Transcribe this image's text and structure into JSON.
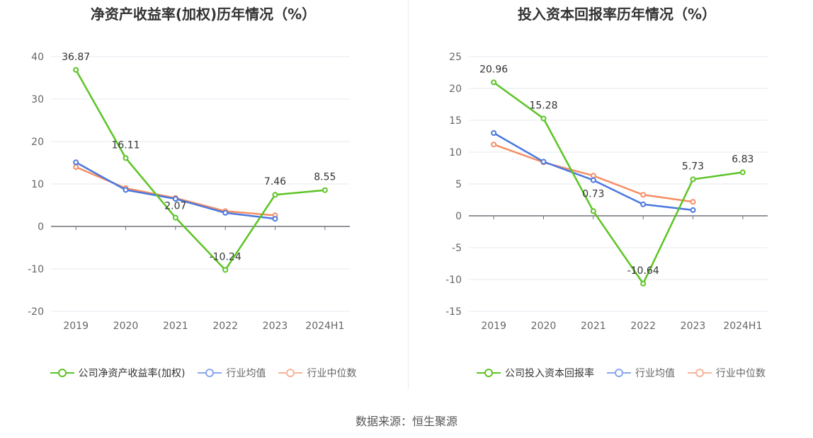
{
  "source_label": "数据来源：恒生聚源",
  "colors": {
    "company": "#5cc424",
    "avg": "#4a78e0",
    "median": "#f58e63"
  },
  "chart_data": [
    {
      "type": "line",
      "title": "净资产收益率(加权)历年情况（%）",
      "categories": [
        "2019",
        "2020",
        "2021",
        "2022",
        "2023",
        "2024H1"
      ],
      "ylim": [
        -20,
        40
      ],
      "yticks": [
        -20,
        -10,
        0,
        10,
        20,
        30,
        40
      ],
      "series": [
        {
          "name": "公司净资产收益率(加权)",
          "key": "company",
          "values": [
            36.87,
            16.11,
            2.07,
            -10.24,
            7.46,
            8.55
          ],
          "labels": [
            "36.87",
            "16.11",
            "2.07",
            "-10.24",
            "7.46",
            "8.55"
          ]
        },
        {
          "name": "行业均值",
          "key": "avg",
          "values": [
            15.1,
            8.6,
            6.5,
            3.2,
            1.8,
            null
          ]
        },
        {
          "name": "行业中位数",
          "key": "median",
          "values": [
            14.0,
            9.0,
            6.7,
            3.6,
            2.6,
            null
          ]
        }
      ]
    },
    {
      "type": "line",
      "title": "投入资本回报率历年情况（%）",
      "categories": [
        "2019",
        "2020",
        "2021",
        "2022",
        "2023",
        "2024H1"
      ],
      "ylim": [
        -15,
        25
      ],
      "yticks": [
        -15,
        -10,
        -5,
        0,
        5,
        10,
        15,
        20,
        25
      ],
      "series": [
        {
          "name": "公司投入资本回报率",
          "key": "company",
          "values": [
            20.96,
            15.28,
            0.73,
            -10.64,
            5.73,
            6.83
          ],
          "labels": [
            "20.96",
            "15.28",
            "0.73",
            "-10.64",
            "5.73",
            "6.83"
          ]
        },
        {
          "name": "行业均值",
          "key": "avg",
          "values": [
            13.0,
            8.5,
            5.6,
            1.8,
            0.9,
            null
          ]
        },
        {
          "name": "行业中位数",
          "key": "median",
          "values": [
            11.2,
            8.4,
            6.3,
            3.3,
            2.2,
            null
          ]
        }
      ]
    }
  ]
}
